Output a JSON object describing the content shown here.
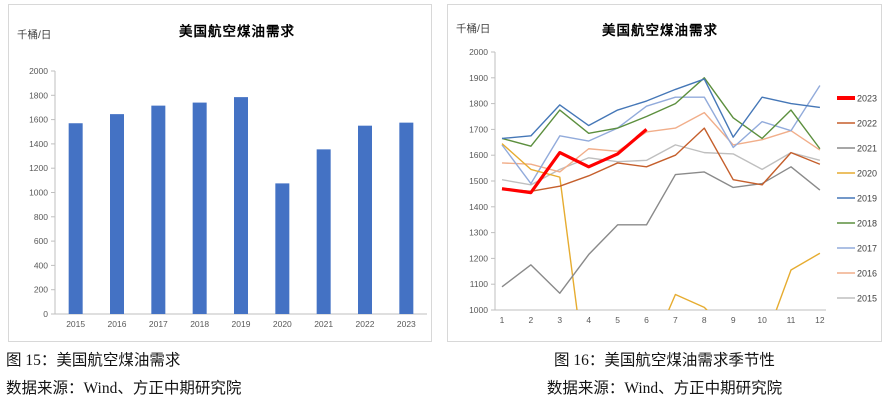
{
  "panels": {
    "left": {
      "caption_title": "图 15：美国航空煤油需求",
      "caption_source": "数据来源：Wind、方正中期研究院"
    },
    "right": {
      "caption_title": "图 16：美国航空煤油需求季节性",
      "caption_source": "数据来源：Wind、方正中期研究院"
    }
  },
  "chart_data": [
    {
      "id": "us-jet-fuel-demand-annual",
      "type": "bar",
      "title": "美国航空煤油需求",
      "ylabel": "千桶/日",
      "categories": [
        "2015",
        "2016",
        "2017",
        "2018",
        "2019",
        "2020",
        "2021",
        "2022",
        "2023"
      ],
      "values": [
        1570,
        1645,
        1715,
        1740,
        1785,
        1075,
        1355,
        1550,
        1575
      ],
      "ylim": [
        0,
        2000
      ],
      "ytick_step": 200,
      "bar_color": "#4472C4",
      "grid": false,
      "legend": "none"
    },
    {
      "id": "us-jet-fuel-demand-seasonal",
      "type": "line",
      "title": "美国航空煤油需求",
      "ylabel": "千桶/日",
      "x": [
        1,
        2,
        3,
        4,
        5,
        6,
        7,
        8,
        9,
        10,
        11,
        12
      ],
      "xlabel": "",
      "ylim": [
        1000,
        2000
      ],
      "ytick_step": 100,
      "grid": false,
      "legend_position": "right",
      "note": "2020 series falls below the 1000 axis minimum (off-scale) during months 4-6 and 9-10; 2023 series ends at month 6",
      "series": [
        {
          "name": "2023",
          "color": "#FF0000",
          "line_width": 3.2,
          "values": [
            1470,
            1455,
            1610,
            1555,
            1605,
            1700
          ]
        },
        {
          "name": "2022",
          "color": "#C55F2C",
          "line_width": 1.4,
          "values": [
            1470,
            1460,
            1480,
            1520,
            1570,
            1555,
            1600,
            1705,
            1505,
            1485,
            1610,
            1565
          ]
        },
        {
          "name": "2021",
          "color": "#8A8A8A",
          "line_width": 1.4,
          "values": [
            1090,
            1175,
            1065,
            1215,
            1330,
            1330,
            1525,
            1535,
            1475,
            1490,
            1555,
            1465
          ]
        },
        {
          "name": "2020",
          "color": "#E6AC30",
          "line_width": 1.4,
          "values": [
            1645,
            1545,
            1515,
            650,
            600,
            800,
            1060,
            1010,
            900,
            850,
            1155,
            1220
          ]
        },
        {
          "name": "2019",
          "color": "#4577B7",
          "line_width": 1.4,
          "values": [
            1665,
            1675,
            1795,
            1715,
            1775,
            1810,
            1855,
            1895,
            1670,
            1825,
            1800,
            1785
          ]
        },
        {
          "name": "2018",
          "color": "#5C8F3E",
          "line_width": 1.4,
          "values": [
            1665,
            1635,
            1775,
            1685,
            1705,
            1750,
            1800,
            1900,
            1745,
            1665,
            1775,
            1625
          ]
        },
        {
          "name": "2017",
          "color": "#92ABDB",
          "line_width": 1.4,
          "values": [
            1640,
            1490,
            1675,
            1655,
            1705,
            1790,
            1825,
            1825,
            1630,
            1730,
            1695,
            1870
          ]
        },
        {
          "name": "2016",
          "color": "#F1AE8A",
          "line_width": 1.4,
          "values": [
            1570,
            1565,
            1535,
            1625,
            1615,
            1690,
            1705,
            1765,
            1640,
            1660,
            1695,
            1620
          ]
        },
        {
          "name": "2015",
          "color": "#BFBFBF",
          "line_width": 1.4,
          "values": [
            1505,
            1485,
            1545,
            1590,
            1575,
            1580,
            1640,
            1610,
            1605,
            1545,
            1610,
            1580
          ]
        }
      ]
    }
  ],
  "colors": {
    "axis_line": "#BFBFBF",
    "tick_label": "#595959",
    "panel_border": "#D8D8D8",
    "bar_blue": "#4472C4"
  }
}
